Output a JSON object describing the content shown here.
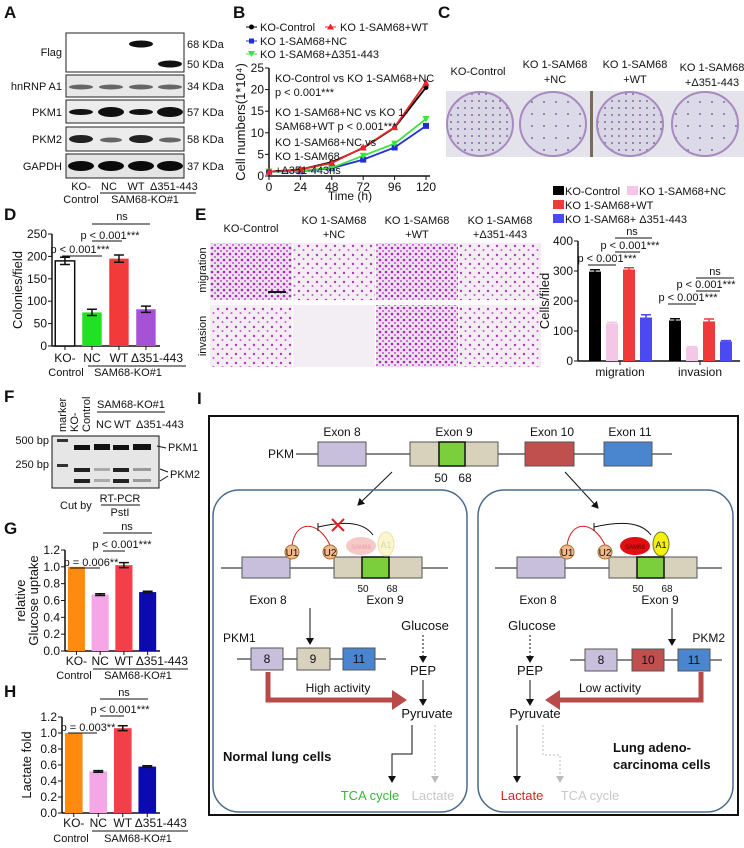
{
  "panels": {
    "A": {
      "label": "A",
      "rows": [
        {
          "name": "Flag",
          "kda": [
            "68 KDa",
            "50 KDa"
          ]
        },
        {
          "name": "hnRNP A1",
          "kda": [
            "34 KDa"
          ]
        },
        {
          "name": "PKM1",
          "kda": [
            "57 KDa"
          ]
        },
        {
          "name": "PKM2",
          "kda": [
            "58 KDa"
          ]
        },
        {
          "name": "GAPDH",
          "kda": [
            "37 KDa"
          ]
        }
      ],
      "lanes": [
        "KO-",
        "NC",
        "WT",
        "Δ351-443"
      ],
      "lane_sub": "Control",
      "group": "SAM68-KO#1"
    },
    "B": {
      "label": "B",
      "annotations": [
        "KO-Control vs KO 1-SAM68+NC",
        "p < 0.001***",
        "KO 1-SAM68+NC vs KO 1-",
        "SAM68+WT p < 0.001***",
        "KO 1-SAM68+NC vs",
        "KO 1-SAM68",
        "+Δ351-443ns"
      ]
    },
    "C": {
      "label": "C",
      "columns": [
        [
          "KO-Control"
        ],
        [
          "KO 1-SAM68",
          "+NC"
        ],
        [
          "KO 1-SAM68",
          "+WT"
        ],
        [
          "KO 1-SAM68",
          "+Δ351-443"
        ]
      ]
    },
    "D": {
      "label": "D",
      "sig": [
        "p < 0.001***",
        "p < 0.001***",
        "ns"
      ],
      "group": "SAM68-KO#1",
      "sub": "Control"
    },
    "E": {
      "label": "E",
      "columns": [
        [
          "KO-Control"
        ],
        [
          "KO 1-SAM68",
          "+NC"
        ],
        [
          "KO 1-SAM68",
          "+WT"
        ],
        [
          "KO 1-SAM68",
          "+Δ351-443"
        ]
      ],
      "rows": [
        "migration",
        "invasion"
      ],
      "sig_migration": [
        "p < 0.001***",
        "p < 0.001***",
        "ns"
      ],
      "sig_invasion": [
        "p < 0.001***",
        "p < 0.001***",
        "ns"
      ]
    },
    "F": {
      "label": "F",
      "lanes": [
        "marker",
        "KO-",
        "Control"
      ],
      "group": "SAM68-KO#1",
      "group_lanes": [
        "NC",
        "WT",
        "Δ351-443"
      ],
      "markers": [
        "500 bp",
        "250 bp"
      ],
      "bands": [
        "PKM1",
        "PKM2"
      ],
      "cut_by": "Cut  by",
      "rtpcr": "RT-PCR",
      "enzyme": "PstI"
    },
    "G": {
      "label": "G",
      "sig": [
        "p = 0.006**",
        "p < 0.001***",
        "ns"
      ],
      "group": "SAM68-KO#1",
      "sub": "Control"
    },
    "H": {
      "label": "H",
      "sig": [
        "p = 0.003**",
        "p < 0.001***",
        "ns"
      ],
      "group": "SAM68-KO#1",
      "sub": "Control"
    },
    "I": {
      "label": "I",
      "gene": "PKM",
      "exons": [
        "Exon 8",
        "Exon 9",
        "Exon 10",
        "Exon 11"
      ],
      "pos": [
        "50",
        "68"
      ],
      "u1": "U1",
      "u2": "U2",
      "sam68": "SAM68",
      "a1": "A1",
      "pkm1": "PKM1",
      "pkm2": "PKM2",
      "box_labels": [
        "8",
        "9",
        "11",
        "8",
        "10",
        "11"
      ],
      "glucose": "Glucose",
      "pep": "PEP",
      "pyruvate": "Pyruvate",
      "high": "High activity",
      "low": "Low activity",
      "normal": "Normal lung cells",
      "cancer": [
        "Lung adeno-",
        "carcinoma cells"
      ],
      "tca": "TCA cycle",
      "lactate": "Lactate"
    }
  },
  "colors": {
    "ko_control": "#000000",
    "wt": "#e8262b",
    "nc": "#1f2fd6",
    "d351": "#3ee43e",
    "D_bars": [
      "#ffffff",
      "#22e022",
      "#f33a3a",
      "#a552d6"
    ],
    "E_bars": [
      "#000000",
      "#f5c6e8",
      "#f03a3a",
      "#4a4af0"
    ],
    "GH_bars": [
      "#ff8a10",
      "#f4a6e6",
      "#f2404a",
      "#0a0ab0"
    ],
    "exon8": "#c8bfdc",
    "exon9": "#d8d2bd",
    "exon9_core": "#7ccf3c",
    "exon10": "#c0504d",
    "exon11": "#4a86d0",
    "tca": "#3cb33c",
    "lactate_red": "#e02020"
  },
  "chart_data": [
    {
      "panel": "B",
      "type": "line",
      "x": [
        0,
        24,
        48,
        72,
        96,
        120
      ],
      "xlabel": "Time (h)",
      "ylabel": "Cell numbers(1*10⁴)",
      "xlim": [
        0,
        120
      ],
      "ylim": [
        0,
        25
      ],
      "xticks": [
        0,
        24,
        48,
        72,
        96,
        120
      ],
      "yticks": [
        0,
        5,
        10,
        15,
        20,
        25
      ],
      "legend": "top",
      "series": [
        {
          "name": "KO-Control",
          "values": [
            1.0,
            1.5,
            3.2,
            6.5,
            11.2,
            20.5
          ]
        },
        {
          "name": "KO 1-SAM68+WT",
          "values": [
            1.0,
            1.5,
            3.0,
            6.6,
            11.3,
            21.6
          ]
        },
        {
          "name": "KO 1-SAM68+NC",
          "values": [
            1.0,
            1.1,
            1.8,
            3.8,
            6.6,
            11.6
          ]
        },
        {
          "name": "KO 1-SAM68+Δ351-443",
          "values": [
            1.0,
            1.2,
            1.9,
            4.7,
            7.5,
            13.2
          ]
        }
      ]
    },
    {
      "panel": "D",
      "type": "bar",
      "categories": [
        "KO-Control",
        "NC",
        "WT",
        "Δ351-443"
      ],
      "values": [
        190,
        75,
        195,
        82
      ],
      "errors": [
        8,
        7,
        8,
        7
      ],
      "ylabel": "Colonies/field",
      "ylim": [
        0,
        250
      ],
      "yticks": [
        0,
        50,
        100,
        150,
        200,
        250
      ]
    },
    {
      "panel": "E",
      "type": "bar",
      "categories": [
        "migration",
        "invasion"
      ],
      "ylabel": "Cells/filed",
      "ylim": [
        0,
        400
      ],
      "yticks": [
        0,
        100,
        200,
        300,
        400
      ],
      "legend": "top",
      "series": [
        {
          "name": "KO-Control",
          "values": [
            298,
            135
          ],
          "errors": [
            6,
            6
          ]
        },
        {
          "name": "KO 1-SAM68+NC",
          "values": [
            125,
            45
          ],
          "errors": [
            4,
            3
          ]
        },
        {
          "name": "KO 1-SAM68+WT",
          "values": [
            305,
            132
          ],
          "errors": [
            6,
            8
          ]
        },
        {
          "name": "KO 1-SAM68+ Δ351-443",
          "values": [
            145,
            65
          ],
          "errors": [
            9,
            3
          ]
        }
      ]
    },
    {
      "panel": "G",
      "type": "bar",
      "categories": [
        "KO-Control",
        "NC",
        "WT",
        "Δ351-443"
      ],
      "values": [
        1.0,
        0.67,
        1.02,
        0.7
      ],
      "errors": [
        0,
        0.01,
        0.03,
        0.01
      ],
      "ylabel": "relative Glucose uptake",
      "ylim": [
        0,
        1.2
      ],
      "yticks": [
        0.0,
        0.2,
        0.4,
        0.6,
        0.8,
        1.0,
        1.2
      ]
    },
    {
      "panel": "H",
      "type": "bar",
      "categories": [
        "KO-Control",
        "NC",
        "WT",
        "Δ351-443"
      ],
      "values": [
        1.0,
        0.52,
        1.06,
        0.58
      ],
      "errors": [
        0,
        0.01,
        0.03,
        0.01
      ],
      "ylabel": "Lactate fold",
      "ylim": [
        0,
        1.2
      ],
      "yticks": [
        0.0,
        0.2,
        0.4,
        0.6,
        0.8,
        1.0,
        1.2
      ]
    }
  ]
}
